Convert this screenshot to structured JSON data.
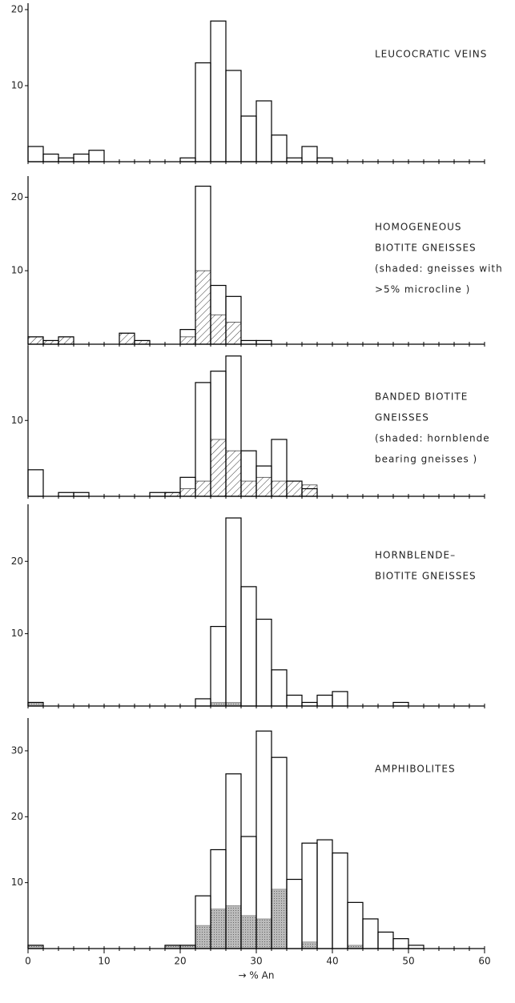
{
  "chart_data": [
    {
      "type": "histogram",
      "annotations": [
        "LEUCOCRATIC VEINS"
      ],
      "bins": [
        0,
        2,
        4,
        6,
        8,
        10,
        12,
        14,
        16,
        18,
        20,
        22,
        24,
        26,
        28,
        30,
        32,
        34,
        36,
        38,
        40,
        42,
        44,
        46,
        48,
        50,
        52,
        54,
        56,
        58,
        60
      ],
      "series": [
        {
          "color": "#000000",
          "values": [
            2,
            1,
            0.5,
            1,
            1.5,
            0,
            0,
            0,
            0,
            0,
            0.5,
            13,
            18.5,
            12,
            6,
            8,
            3.5,
            0.5,
            2,
            0.5,
            0,
            0,
            0,
            0,
            0,
            0,
            0,
            0,
            0,
            0
          ]
        }
      ],
      "xlim": [
        0,
        60
      ],
      "ylim": [
        0,
        20
      ],
      "yticks": [
        10,
        20
      ]
    },
    {
      "type": "histogram",
      "annotations": [
        "HOMOGENEOUS",
        "BIOTITE GNEISSES",
        "(shaded: gneisses with",
        ">5% microcline )"
      ],
      "bins": [
        0,
        2,
        4,
        6,
        8,
        10,
        12,
        14,
        16,
        18,
        20,
        22,
        24,
        26,
        28,
        30,
        32,
        34,
        36,
        38,
        40,
        42,
        44,
        46,
        48,
        50,
        52,
        54,
        56,
        58,
        60
      ],
      "series": [
        {
          "color": "#444444",
          "pattern": "hatch",
          "values": [
            1,
            0.5,
            1,
            0,
            0,
            0,
            1.5,
            0.5,
            0,
            0,
            1,
            10,
            4,
            3,
            0,
            0,
            0,
            0,
            0,
            0,
            0,
            0,
            0,
            0,
            0,
            0,
            0,
            0,
            0,
            0
          ]
        },
        {
          "color": "#000000",
          "values": [
            1,
            0.5,
            1,
            0,
            0,
            0,
            1.5,
            0.5,
            0,
            0,
            2,
            21.5,
            8,
            6.5,
            0.5,
            0.5,
            0,
            0,
            0,
            0,
            0,
            0,
            0,
            0,
            0,
            0,
            0,
            0,
            0,
            0
          ]
        }
      ],
      "xlim": [
        0,
        60
      ],
      "ylim": [
        0,
        22
      ],
      "yticks": [
        10,
        20
      ]
    },
    {
      "type": "histogram",
      "annotations": [
        "BANDED BIOTITE",
        "GNEISSES",
        "(shaded: hornblende",
        "bearing gneisses )"
      ],
      "bins": [
        0,
        2,
        4,
        6,
        8,
        10,
        12,
        14,
        16,
        18,
        20,
        22,
        24,
        26,
        28,
        30,
        32,
        34,
        36,
        38,
        40,
        42,
        44,
        46,
        48,
        50,
        52,
        54,
        56,
        58,
        60
      ],
      "series": [
        {
          "color": "#444444",
          "pattern": "hatch",
          "values": [
            0,
            0,
            0,
            0,
            0,
            0,
            0,
            0,
            0,
            0.5,
            1,
            2,
            7.5,
            6,
            2,
            2.5,
            2,
            2,
            1.5,
            0,
            0,
            0,
            0,
            0,
            0,
            0,
            0,
            0,
            0,
            0
          ]
        },
        {
          "color": "#000000",
          "values": [
            3.5,
            0,
            0.5,
            0.5,
            0,
            0,
            0,
            0,
            0.5,
            0.5,
            2.5,
            15,
            16.5,
            18.5,
            6,
            4,
            7.5,
            2,
            1,
            0,
            0,
            0,
            0,
            0,
            0,
            0,
            0,
            0,
            0,
            0
          ]
        }
      ],
      "xlim": [
        0,
        60
      ],
      "ylim": [
        0,
        19
      ],
      "yticks": [
        10
      ]
    },
    {
      "type": "histogram",
      "annotations": [
        "HORNBLENDE–",
        "BIOTITE GNEISSES"
      ],
      "bins": [
        0,
        2,
        4,
        6,
        8,
        10,
        12,
        14,
        16,
        18,
        20,
        22,
        24,
        26,
        28,
        30,
        32,
        34,
        36,
        38,
        40,
        42,
        44,
        46,
        48,
        50,
        52,
        54,
        56,
        58,
        60
      ],
      "series": [
        {
          "color": "#888888",
          "pattern": "stipple",
          "values": [
            0.5,
            0,
            0,
            0,
            0,
            0,
            0,
            0,
            0,
            0,
            0,
            0,
            0.5,
            0.5,
            0,
            0,
            0,
            0,
            0,
            0,
            0,
            0,
            0,
            0,
            0,
            0,
            0,
            0,
            0,
            0
          ]
        },
        {
          "color": "#000000",
          "values": [
            0.5,
            0,
            0,
            0,
            0,
            0,
            0,
            0,
            0,
            0,
            0,
            1,
            11,
            26,
            16.5,
            12,
            5,
            1.5,
            0.5,
            1.5,
            2,
            0,
            0,
            0,
            0.5,
            0,
            0,
            0,
            0,
            0
          ]
        }
      ],
      "xlim": [
        0,
        60
      ],
      "ylim": [
        0,
        27
      ],
      "yticks": [
        10,
        20
      ]
    },
    {
      "type": "histogram",
      "annotations": [
        "AMPHIBOLITES"
      ],
      "xlabel": "→ % An",
      "bins": [
        0,
        2,
        4,
        6,
        8,
        10,
        12,
        14,
        16,
        18,
        20,
        22,
        24,
        26,
        28,
        30,
        32,
        34,
        36,
        38,
        40,
        42,
        44,
        46,
        48,
        50,
        52,
        54,
        56,
        58,
        60
      ],
      "series": [
        {
          "color": "#888888",
          "pattern": "stipple",
          "values": [
            0.5,
            0,
            0,
            0,
            0,
            0,
            0,
            0,
            0,
            0.5,
            0.5,
            3.5,
            6,
            6.5,
            5,
            4.5,
            9,
            0,
            1,
            0,
            0,
            0.5,
            0,
            0,
            0,
            0,
            0,
            0,
            0,
            0
          ]
        },
        {
          "color": "#000000",
          "values": [
            0.5,
            0,
            0,
            0,
            0,
            0,
            0,
            0,
            0,
            0.5,
            0.5,
            8,
            15,
            26.5,
            17,
            33,
            29,
            10.5,
            16,
            16.5,
            14.5,
            7,
            4.5,
            2.5,
            1.5,
            0.5,
            0,
            0,
            0,
            0
          ]
        }
      ],
      "xlim": [
        0,
        60
      ],
      "ylim": [
        0,
        34
      ],
      "yticks": [
        10,
        20,
        30
      ],
      "xticks": [
        0,
        10,
        20,
        30,
        40,
        50,
        60
      ]
    }
  ]
}
